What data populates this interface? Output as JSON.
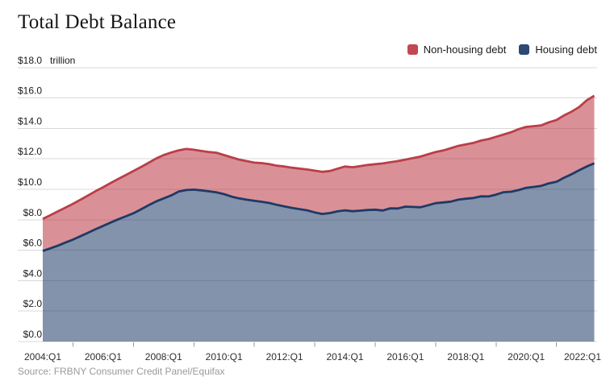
{
  "header": {
    "title": "Total Debt Balance"
  },
  "legend": {
    "items": [
      {
        "label": "Non-housing debt",
        "color": "#c14850"
      },
      {
        "label": "Housing debt",
        "color": "#2b4a74"
      }
    ]
  },
  "source": "Source: FRBNY Consumer Credit Panel/Equifax",
  "chart_data": {
    "type": "area",
    "title": "Total Debt Balance",
    "unit_label": "trillion",
    "stacked": true,
    "legend_position": "top-right",
    "grid": "horizontal",
    "x_start": 2004.0,
    "x_step": 0.25,
    "x_end": 2022.25,
    "ylim": [
      0,
      18
    ],
    "y_ticks": [
      0,
      2,
      4,
      6,
      8,
      10,
      12,
      14,
      16,
      18
    ],
    "y_tick_labels": [
      "$0.0",
      "$2.0",
      "$4.0",
      "$6.0",
      "$8.0",
      "$10.0",
      "$12.0",
      "$14.0",
      "$16.0",
      "$18.0"
    ],
    "x_tick_years": [
      2004,
      2006,
      2008,
      2010,
      2012,
      2014,
      2016,
      2018,
      2020,
      2022
    ],
    "x_tick_labels": [
      "2004:Q1",
      "2006:Q1",
      "2008:Q1",
      "2010:Q1",
      "2012:Q1",
      "2014:Q1",
      "2016:Q1",
      "2018:Q1",
      "2020:Q1",
      "2022:Q1"
    ],
    "x_minor_tick_years": [
      2005,
      2007,
      2009,
      2011,
      2013,
      2015,
      2017,
      2019,
      2021
    ],
    "series": [
      {
        "name": "Housing debt",
        "line_color": "#1e3a66",
        "fill_color": "rgba(30,58,102,0.55)",
        "values": [
          5.95,
          6.12,
          6.3,
          6.5,
          6.7,
          6.92,
          7.15,
          7.38,
          7.6,
          7.82,
          8.03,
          8.23,
          8.43,
          8.68,
          8.95,
          9.2,
          9.4,
          9.6,
          9.85,
          9.95,
          9.98,
          9.93,
          9.87,
          9.8,
          9.68,
          9.52,
          9.4,
          9.32,
          9.25,
          9.18,
          9.1,
          8.98,
          8.88,
          8.78,
          8.7,
          8.62,
          8.48,
          8.38,
          8.44,
          8.55,
          8.62,
          8.56,
          8.6,
          8.64,
          8.66,
          8.61,
          8.75,
          8.74,
          8.86,
          8.84,
          8.82,
          8.95,
          9.09,
          9.14,
          9.19,
          9.32,
          9.38,
          9.43,
          9.54,
          9.53,
          9.65,
          9.81,
          9.84,
          9.95,
          10.1,
          10.16,
          10.23,
          10.39,
          10.5,
          10.76,
          10.99,
          11.25,
          11.5,
          11.71
        ]
      },
      {
        "name": "Non-housing debt",
        "line_color": "#bb3e48",
        "fill_color": "rgba(185,55,65,0.55)",
        "values": [
          2.11,
          2.18,
          2.25,
          2.3,
          2.35,
          2.4,
          2.45,
          2.5,
          2.54,
          2.6,
          2.65,
          2.71,
          2.77,
          2.78,
          2.79,
          2.82,
          2.85,
          2.82,
          2.71,
          2.7,
          2.62,
          2.59,
          2.58,
          2.6,
          2.57,
          2.58,
          2.55,
          2.53,
          2.5,
          2.54,
          2.55,
          2.57,
          2.62,
          2.64,
          2.66,
          2.68,
          2.74,
          2.77,
          2.76,
          2.8,
          2.88,
          2.89,
          2.92,
          2.96,
          2.99,
          3.09,
          3.03,
          3.11,
          3.09,
          3.21,
          3.33,
          3.35,
          3.36,
          3.41,
          3.51,
          3.53,
          3.57,
          3.62,
          3.66,
          3.77,
          3.8,
          3.79,
          3.91,
          4.0,
          4.0,
          3.99,
          3.97,
          4.01,
          4.05,
          4.09,
          4.11,
          4.15,
          4.34,
          4.44
        ]
      }
    ]
  }
}
